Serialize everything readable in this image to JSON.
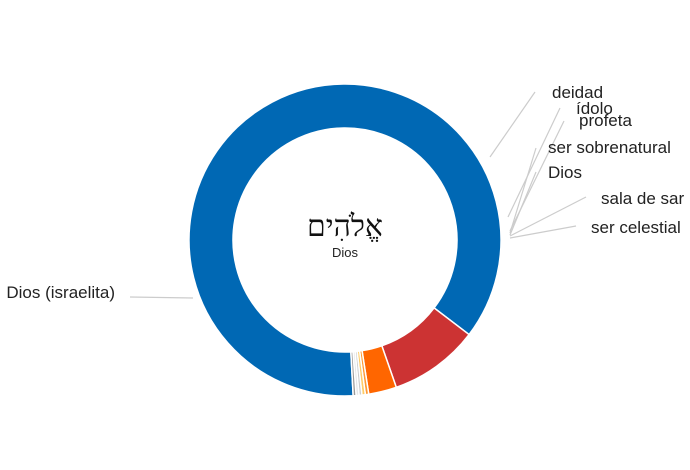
{
  "chart_data": {
    "type": "pie",
    "donut": true,
    "center": {
      "word": "אֱלֹהִים",
      "gloss": "Dios"
    },
    "slices": [
      {
        "label": "Dios (israelita)",
        "value": 86.2,
        "color": "#0068b4"
      },
      {
        "label": "deidad",
        "value": 9.3,
        "color": "#cc3333"
      },
      {
        "label": "ídolo",
        "value": 2.9,
        "color": "#ff6600"
      },
      {
        "label": "profeta",
        "value": 0.35,
        "color": "#ff9933"
      },
      {
        "label": "ser sobrenatural",
        "value": 0.35,
        "color": "#ffcc66"
      },
      {
        "label": "Dios",
        "value": 0.3,
        "color": "#cccccc"
      },
      {
        "label": "sala de sar",
        "value": 0.3,
        "color": "#e6e6e6"
      },
      {
        "label": "ser celestial",
        "value": 0.3,
        "color": "#999999"
      }
    ]
  }
}
